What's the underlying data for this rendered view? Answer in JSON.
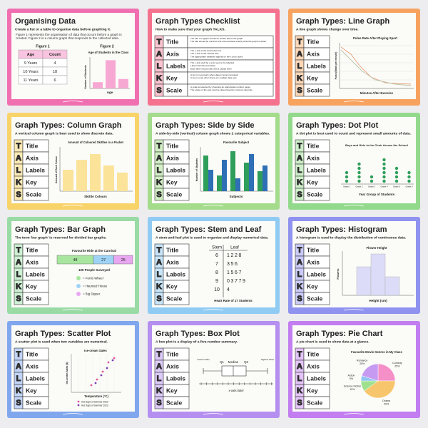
{
  "talks": {
    "letters": [
      "T",
      "A",
      "L",
      "K",
      "S"
    ],
    "words": [
      "Title",
      "Axis",
      "Labels",
      "Key",
      "Scale"
    ]
  },
  "slides": [
    {
      "title": "Organising Data",
      "subtitle": "Create a list or a table to organise data before graphing it.",
      "caption": "Figure 1 represents the organisation of data that occurs before a graph is created. Figure 2 is a column graph that responds to the collected data.",
      "figure1": "Figure 1",
      "figure2": "Figure 2",
      "table": {
        "header": [
          "Age",
          "Count"
        ],
        "rows": [
          [
            "9 Years",
            4
          ],
          [
            "10 Years",
            18
          ],
          [
            "11 Years",
            6
          ]
        ]
      },
      "chart_title": "Age of Students in the Class",
      "x_label": "Age",
      "y_label": "Number of Students",
      "color": "#f06fb0"
    },
    {
      "title": "Graph Types Checklist",
      "subtitle": "How to make sure that your graph TALKS.",
      "checklist": [
        [
          "The title of a graph should be written above the graph",
          "The title should be succinct and communicate exactly what the graph is about"
        ],
        [
          "The x axis is the horizontal axis",
          "The y axis is the vertical axis",
          "The appropriate variables appear on the x and y axes"
        ],
        [
          "The x axis and the y axis need to be labelled",
          "Label intervals accurately",
          "Each label should start with a capital letter"
        ],
        [
          "A key is necessary when data is being compared",
          "A key is used when there are multiple data sets"
        ],
        [
          "A scale is selected by choosing an appropriate number range",
          "The scale on the axis must be determined by common intervals"
        ]
      ]
    },
    {
      "title": "Graph Types: Line Graph",
      "subtitle": "A line graph shows change over time.",
      "chart_title": "Pulse Rate After Playing Sport",
      "x_label": "Minutes After Exercise",
      "y_label": "Pulse (Beats per minute)"
    },
    {
      "title": "Graph Types: Column Graph",
      "subtitle": "A vertical column graph is best used to show discrete data.",
      "chart_title": "Amount of Coloured Skittles in a Packet",
      "x_label": "Skittle Colours",
      "y_label": "Amount of Each Colour"
    },
    {
      "title": "Graph Types: Side by Side",
      "subtitle": "A side-by-side (vertical) column graph shows 2 categorical variables.",
      "chart_title": "Favourite Subject",
      "x_label": "Subjects",
      "y_label": "Number of Students"
    },
    {
      "title": "Graph Types: Dot Plot",
      "subtitle": "A dot plot is best used to count and represent small amounts of data.",
      "chart_title": "Boys and Girls in the Choir Across the School",
      "categories": [
        "Grade 1",
        "Grade 2",
        "Grade 3",
        "Grade 4",
        "Grade 5",
        "Grade 6"
      ],
      "values": [
        3,
        5,
        2,
        6,
        4,
        3
      ],
      "x_label": "Year Group of Students",
      "color": "#2e9e5a"
    },
    {
      "title": "Graph Types: Bar Graph",
      "subtitle": "The term 'bar graph' is reserved for divided bar graphs.",
      "chart_title": "Favourite Ride at the Carnival",
      "values": [
        48,
        27,
        25
      ],
      "colors": [
        "#a8e6a0",
        "#9fd3f5",
        "#e8a7f0"
      ],
      "note": "100 People Surveyed",
      "legend": [
        "= Ferris Wheel",
        "= Haunted House",
        "= Big Dipper"
      ]
    },
    {
      "title": "Graph Types: Stem and Leaf",
      "subtitle": "A stem-and-leaf plot is used to organise and display numerical data.",
      "header": [
        "Stem",
        "Leaf"
      ],
      "rows": [
        [
          "6",
          "1228"
        ],
        [
          "7",
          "356"
        ],
        [
          "8",
          "1567"
        ],
        [
          "9",
          "03779"
        ],
        [
          "10",
          "4"
        ]
      ],
      "caption": "Heart Rate of 17 Students"
    },
    {
      "title": "Graph Types: Histogram",
      "subtitle": "A histogram is used to display the distribution of continuous data.",
      "chart_title": "Flower Height",
      "x_label": "Height (cm)",
      "y_label": "Flowers"
    },
    {
      "title": "Graph Types: Scatter Plot",
      "subtitle": "A scatter plot is used when two variables are numerical.",
      "chart_title": "Ice-cream Sales",
      "x_label": "Temperature (°C)",
      "y_label": "Ice-cream Sales ($)",
      "legend": [
        "Hot Days of Summer 2022",
        "Hot Days of Summer 2023"
      ]
    },
    {
      "title": "Graph Types: Box Plot",
      "subtitle": "A box plot is a display of a five-number summary.",
      "labels": [
        "Lowest Value",
        "Q1",
        "Median",
        "Q3",
        "Highest Value"
      ],
      "x_label": "x-axis label"
    },
    {
      "title": "Graph Types: Pie Chart",
      "subtitle": "A pie chart is used to show data at a glance.",
      "chart_title": "Favourite Movie Genres in My Class",
      "names": [
        "Comedy",
        "Drama",
        "Science Fiction",
        "Action",
        "Romance"
      ],
      "values": [
        25,
        40,
        10,
        5,
        20
      ],
      "value_labels": [
        "25%",
        "40%",
        "10%",
        "5%",
        "20%"
      ],
      "colors": [
        "#f48fc8",
        "#f7c56b",
        "#9fe08f",
        "#8fc4f2",
        "#c79af2"
      ]
    }
  ]
}
